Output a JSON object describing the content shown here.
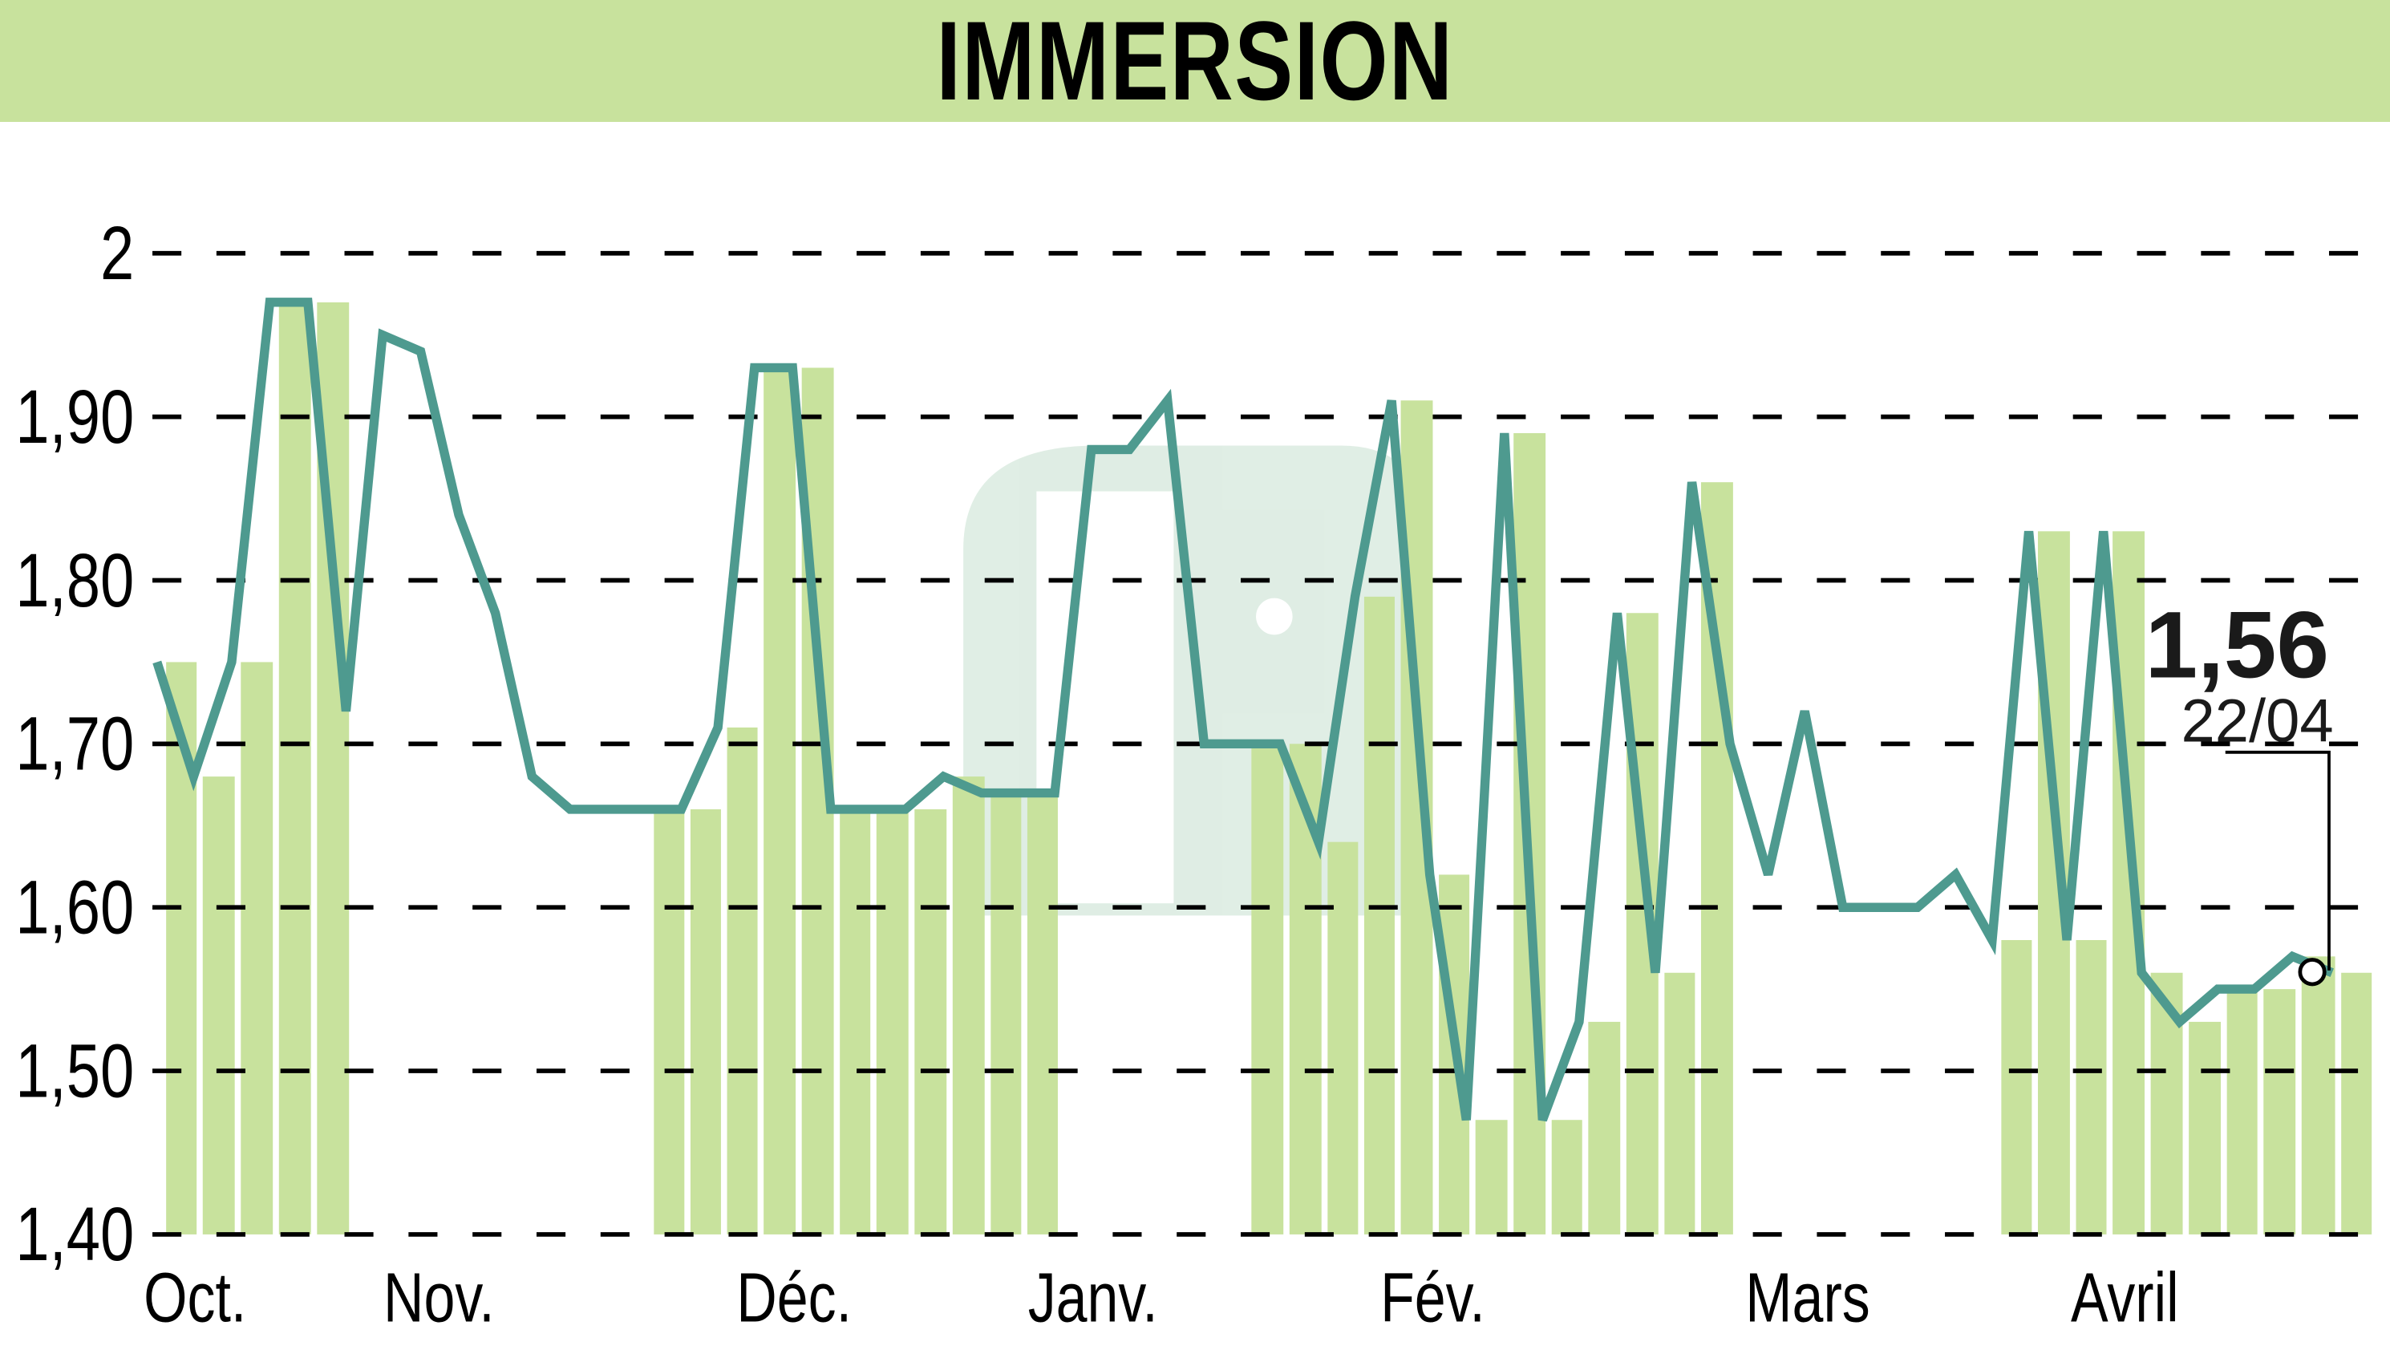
{
  "header": {
    "title": "IMMERSION"
  },
  "colors": {
    "title_bg": "#c8e29d",
    "bar": "#c8e29d",
    "line": "#4e9a8f",
    "grid": "#000000",
    "watermark": "#c6e0cf"
  },
  "annotation": {
    "value": "1,56",
    "date": "22/04"
  },
  "chart_data": {
    "type": "line",
    "title": "IMMERSION",
    "xlabel": "",
    "ylabel": "",
    "ylim": [
      1.4,
      2.0
    ],
    "yticks": [
      "1,40",
      "1,50",
      "1,60",
      "1,70",
      "1,80",
      "1,90",
      "2"
    ],
    "ytick_values": [
      1.4,
      1.5,
      1.6,
      1.7,
      1.8,
      1.9,
      2.0
    ],
    "xtick_labels": [
      "Oct.",
      "Nov.",
      "Déc.",
      "Janv.",
      "Fév.",
      "Mars",
      "Avril"
    ],
    "xtick_positions": [
      128,
      288,
      521,
      717,
      940,
      1186,
      1394
    ],
    "grid": "horizontal dashed",
    "legend": "none",
    "last_value": 1.56,
    "last_date": "22/04",
    "x": [
      103,
      127,
      152,
      177,
      202,
      227,
      251,
      276,
      301,
      325,
      349,
      374,
      398,
      423,
      447,
      471,
      495,
      520,
      545,
      569,
      594,
      619,
      644,
      668,
      692,
      716,
      741,
      766,
      790,
      815,
      840,
      865,
      889,
      913,
      938,
      962,
      987,
      1012,
      1036,
      1061,
      1086,
      1110,
      1135,
      1160,
      1184,
      1209,
      1234,
      1258,
      1283,
      1307,
      1331,
      1356,
      1380,
      1405,
      1430,
      1455,
      1479,
      1504,
      1530
    ],
    "values": [
      1.75,
      1.68,
      1.75,
      1.97,
      1.97,
      1.72,
      1.95,
      1.94,
      1.84,
      1.78,
      1.68,
      1.66,
      1.66,
      1.66,
      1.66,
      1.71,
      1.93,
      1.93,
      1.66,
      1.66,
      1.66,
      1.68,
      1.67,
      1.67,
      1.67,
      1.88,
      1.88,
      1.91,
      1.7,
      1.7,
      1.7,
      1.64,
      1.79,
      1.91,
      1.62,
      1.47,
      1.89,
      1.47,
      1.53,
      1.78,
      1.56,
      1.86,
      1.7,
      1.62,
      1.72,
      1.6,
      1.6,
      1.6,
      1.62,
      1.58,
      1.83,
      1.58,
      1.83,
      1.56,
      1.53,
      1.55,
      1.55,
      1.57,
      1.56
    ],
    "bar_groups": [
      {
        "x_start": 110,
        "x_end": 206
      },
      {
        "x_start": 430,
        "x_end": 672
      },
      {
        "x_start": 822,
        "x_end": 1114
      },
      {
        "x_start": 1314,
        "x_end": 1532
      }
    ]
  }
}
